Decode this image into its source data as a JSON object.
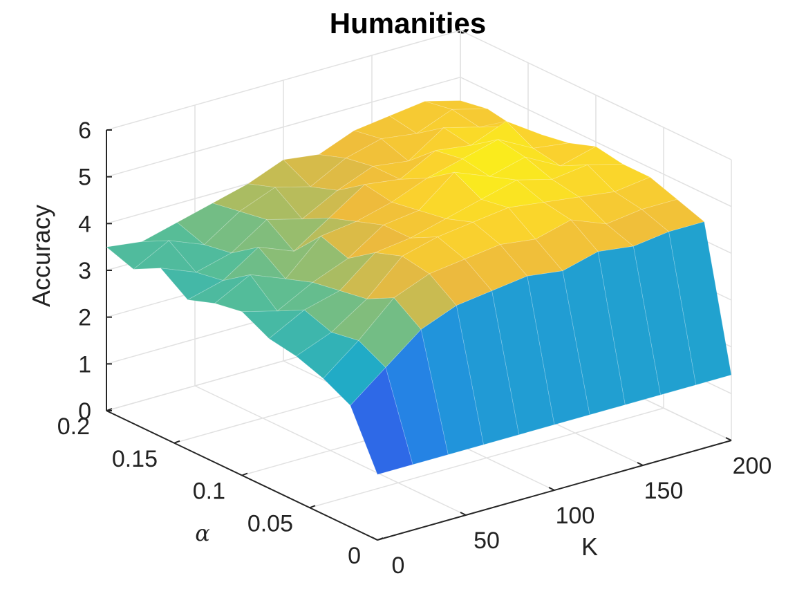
{
  "chart_data": {
    "type": "surface",
    "title": "Humanities",
    "xlabel": "K",
    "ylabel": "α",
    "zlabel": "Accuracy",
    "xlim": [
      0,
      200
    ],
    "ylim": [
      0,
      0.2
    ],
    "zlim": [
      0,
      6
    ],
    "grid": true,
    "colormap": "parula",
    "x_tick_labels": [
      "0",
      "50",
      "100",
      "150",
      "200"
    ],
    "y_tick_labels": [
      "0",
      "0.05",
      "0.1",
      "0.15",
      "0.2"
    ],
    "z_tick_labels": [
      "0",
      "1",
      "2",
      "3",
      "4",
      "5",
      "6"
    ],
    "K": [
      0,
      20,
      40,
      60,
      80,
      100,
      120,
      140,
      160,
      180,
      200
    ],
    "alpha": [
      0,
      0.02,
      0.04,
      0.06,
      0.08,
      0.1,
      0.12,
      0.14,
      0.16,
      0.18,
      0.2
    ],
    "accuracy": [
      [
        1.4,
        1.4,
        1.4,
        1.4,
        1.4,
        1.4,
        1.4,
        1.4,
        1.4,
        1.4,
        1.4
      ],
      [
        2.6,
        3.2,
        3.8,
        4.1,
        4.2,
        4.3,
        4.2,
        4.4,
        4.3,
        4.4,
        4.4
      ],
      [
        2.9,
        3.5,
        4.2,
        4.5,
        4.6,
        4.7,
        4.6,
        4.8,
        4.5,
        4.6,
        4.6
      ],
      [
        3.1,
        3.4,
        3.9,
        4.6,
        4.8,
        4.9,
        5.0,
        4.9,
        4.8,
        4.7,
        4.8
      ],
      [
        3.2,
        3.6,
        3.8,
        4.4,
        4.5,
        4.7,
        4.9,
        5.1,
        4.9,
        5.0,
        4.8
      ],
      [
        3.5,
        3.3,
        3.7,
        4.0,
        4.5,
        4.6,
        5.2,
        4.9,
        5.1,
        4.7,
        4.9
      ],
      [
        3.4,
        3.8,
        3.5,
        4.2,
        4.3,
        4.5,
        4.8,
        5.0,
        5.2,
        4.8,
        4.7
      ],
      [
        3.2,
        3.4,
        3.9,
        3.6,
        4.1,
        4.6,
        4.5,
        4.9,
        4.8,
        5.1,
        4.6
      ],
      [
        3.6,
        3.3,
        3.5,
        4.0,
        3.8,
        4.2,
        4.5,
        4.4,
        4.9,
        4.7,
        4.5
      ],
      [
        3.3,
        3.7,
        3.4,
        3.9,
        4.2,
        4.0,
        4.4,
        4.6,
        4.5,
        4.8,
        4.6
      ],
      [
        3.5,
        3.4,
        3.6,
        3.8,
        4.0,
        4.3,
        4.2,
        4.5,
        4.6,
        4.7,
        4.5
      ]
    ]
  }
}
